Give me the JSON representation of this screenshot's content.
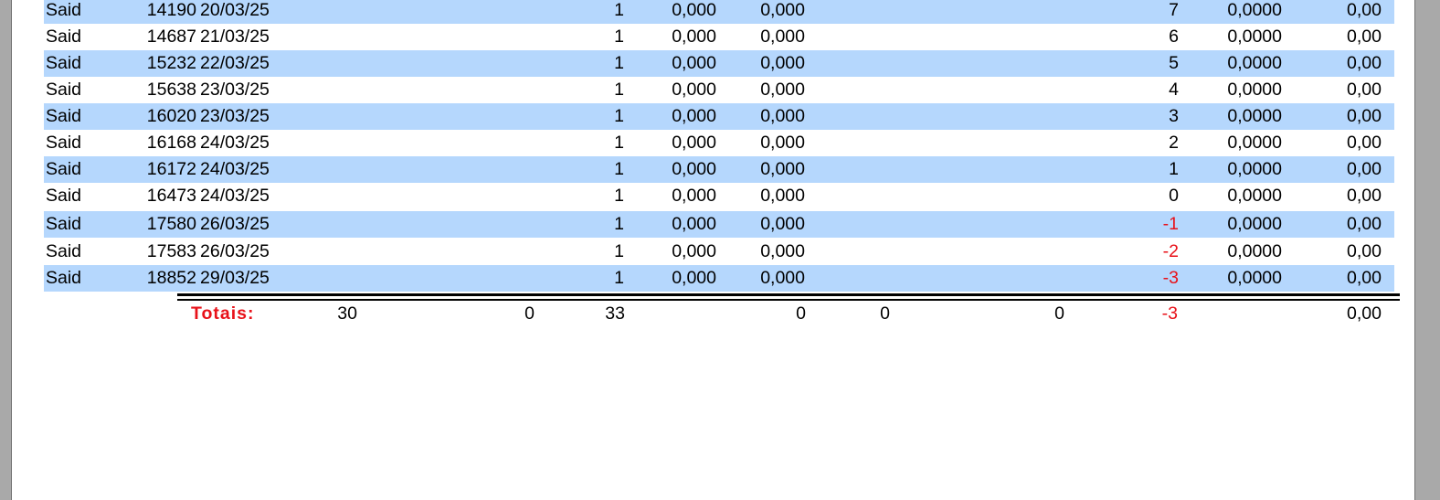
{
  "rows": [
    {
      "name": "Said",
      "num": "14190",
      "date": "20/03/25",
      "qty": "1",
      "v1": "0,000",
      "v2": "0,000",
      "balance": "7",
      "v3": "0,0000",
      "v4": "0,00"
    },
    {
      "name": "Said",
      "num": "14687",
      "date": "21/03/25",
      "qty": "1",
      "v1": "0,000",
      "v2": "0,000",
      "balance": "6",
      "v3": "0,0000",
      "v4": "0,00"
    },
    {
      "name": "Said",
      "num": "15232",
      "date": "22/03/25",
      "qty": "1",
      "v1": "0,000",
      "v2": "0,000",
      "balance": "5",
      "v3": "0,0000",
      "v4": "0,00"
    },
    {
      "name": "Said",
      "num": "15638",
      "date": "23/03/25",
      "qty": "1",
      "v1": "0,000",
      "v2": "0,000",
      "balance": "4",
      "v3": "0,0000",
      "v4": "0,00"
    },
    {
      "name": "Said",
      "num": "16020",
      "date": "23/03/25",
      "qty": "1",
      "v1": "0,000",
      "v2": "0,000",
      "balance": "3",
      "v3": "0,0000",
      "v4": "0,00"
    },
    {
      "name": "Said",
      "num": "16168",
      "date": "24/03/25",
      "qty": "1",
      "v1": "0,000",
      "v2": "0,000",
      "balance": "2",
      "v3": "0,0000",
      "v4": "0,00"
    },
    {
      "name": "Said",
      "num": "16172",
      "date": "24/03/25",
      "qty": "1",
      "v1": "0,000",
      "v2": "0,000",
      "balance": "1",
      "v3": "0,0000",
      "v4": "0,00"
    },
    {
      "name": "Said",
      "num": "16473",
      "date": "24/03/25",
      "qty": "1",
      "v1": "0,000",
      "v2": "0,000",
      "balance": "0",
      "v3": "0,0000",
      "v4": "0,00"
    },
    {
      "name": "Said",
      "num": "17580",
      "date": "26/03/25",
      "qty": "1",
      "v1": "0,000",
      "v2": "0,000",
      "balance": "-1",
      "v3": "0,0000",
      "v4": "0,00"
    },
    {
      "name": "Said",
      "num": "17583",
      "date": "26/03/25",
      "qty": "1",
      "v1": "0,000",
      "v2": "0,000",
      "balance": "-2",
      "v3": "0,0000",
      "v4": "0,00"
    },
    {
      "name": "Said",
      "num": "18852",
      "date": "29/03/25",
      "qty": "1",
      "v1": "0,000",
      "v2": "0,000",
      "balance": "-3",
      "v3": "0,0000",
      "v4": "0,00"
    }
  ],
  "totals": {
    "label": "Totais:",
    "t1": "30",
    "t2": "0",
    "t3": "33",
    "t4": "0",
    "t5": "0",
    "t6": "0",
    "t7": "-3",
    "t8": "0,00"
  },
  "colors": {
    "row_shade": "#b5d7fd",
    "negative": "#e8121a"
  }
}
